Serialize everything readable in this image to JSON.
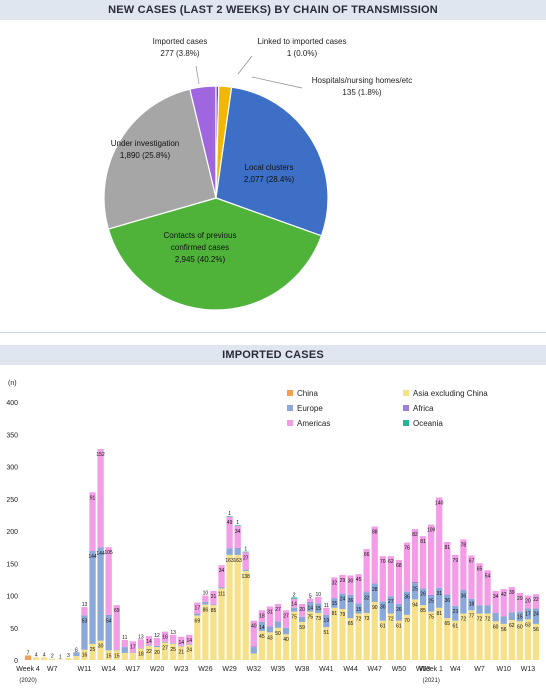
{
  "panel1": {
    "title": "NEW CASES (LAST 2 WEEKS) BY CHAIN OF TRANSMISSION"
  },
  "panel2": {
    "title": "IMPORTED CASES"
  },
  "chart_data": [
    {
      "type": "pie",
      "title": "NEW CASES (LAST 2 WEEKS) BY CHAIN OF TRANSMISSION",
      "slices": [
        {
          "name": "Imported cases",
          "value": 277,
          "pct": "3.8%",
          "color": "#a066e0"
        },
        {
          "name": "Linked to imported cases",
          "value": 1,
          "pct": "0.0%",
          "color": "#7a3fb8"
        },
        {
          "name": "Hospitals/nursing homes/etc",
          "value": 135,
          "pct": "1.8%",
          "color": "#f2b705"
        },
        {
          "name": "Local clusters",
          "value": 2077,
          "pct": "28.4%",
          "color": "#3d6fc6"
        },
        {
          "name": "Contacts of previous confirmed cases",
          "value": 2945,
          "pct": "40.2%",
          "color": "#4fb33a"
        },
        {
          "name": "Under investigation",
          "value": 1890,
          "pct": "25.8%",
          "color": "#a6a6a6"
        }
      ],
      "labels": {
        "imported": {
          "name": "Imported cases",
          "value": "277 (3.8%)"
        },
        "linked": {
          "name": "Linked to imported cases",
          "value": "1 (0.0%)"
        },
        "hospitals": {
          "name": "Hospitals/nursing homes/etc",
          "value": "135 (1.8%)"
        },
        "local": {
          "name": "Local clusters",
          "value": "2,077 (28.4%)"
        },
        "contacts": {
          "name1": "Contacts of previous",
          "name2": "confirmed cases",
          "value": "2,945 (40.2%)"
        },
        "under": {
          "name": "Under investigation",
          "value": "1,890 (25.8%)"
        }
      }
    },
    {
      "type": "bar",
      "stacked": true,
      "title": "IMPORTED CASES",
      "ylabel": "(n)",
      "ylim": [
        0,
        400
      ],
      "yticks": [
        0,
        50,
        100,
        150,
        200,
        250,
        300,
        350,
        400
      ],
      "xtick_labels": [
        {
          "i": 0,
          "label": "Week 4",
          "sub": "(2020)"
        },
        {
          "i": 3,
          "label": "W7"
        },
        {
          "i": 7,
          "label": "W11"
        },
        {
          "i": 10,
          "label": "W14"
        },
        {
          "i": 13,
          "label": "W17"
        },
        {
          "i": 16,
          "label": "W20"
        },
        {
          "i": 19,
          "label": "W23"
        },
        {
          "i": 22,
          "label": "W26"
        },
        {
          "i": 25,
          "label": "W29"
        },
        {
          "i": 28,
          "label": "W32"
        },
        {
          "i": 31,
          "label": "W35"
        },
        {
          "i": 34,
          "label": "W38"
        },
        {
          "i": 37,
          "label": "W41"
        },
        {
          "i": 40,
          "label": "W44"
        },
        {
          "i": 43,
          "label": "W47"
        },
        {
          "i": 46,
          "label": "W50"
        },
        {
          "i": 49,
          "label": "W53"
        },
        {
          "i": 50,
          "label": "Week 1",
          "sub": "(2021)"
        },
        {
          "i": 53,
          "label": "W4"
        },
        {
          "i": 56,
          "label": "W7"
        },
        {
          "i": 59,
          "label": "W10"
        },
        {
          "i": 62,
          "label": "W13"
        }
      ],
      "legend": [
        {
          "name": "China",
          "color": "#f0a050"
        },
        {
          "name": "Asia excluding China",
          "color": "#f7e08a"
        },
        {
          "name": "Europe",
          "color": "#8aa8d8"
        },
        {
          "name": "Africa",
          "color": "#9a7fd8"
        },
        {
          "name": "Americas",
          "color": "#f29de6"
        },
        {
          "name": "Oceania",
          "color": "#26b59a"
        }
      ],
      "series_order": [
        "China",
        "Asia excluding China",
        "Europe",
        "Africa",
        "Americas",
        "Oceania"
      ],
      "bars": [
        {
          "s": [
            7,
            0,
            0,
            0,
            0,
            0
          ]
        },
        {
          "s": [
            0,
            4,
            0,
            0,
            0,
            0
          ]
        },
        {
          "s": [
            0,
            4,
            0,
            0,
            0,
            0
          ]
        },
        {
          "s": [
            0,
            2,
            0,
            0,
            0,
            0
          ]
        },
        {
          "s": [
            0,
            1,
            0,
            0,
            0,
            0
          ]
        },
        {
          "s": [
            0,
            3,
            0,
            0,
            0,
            0
          ]
        },
        {
          "s": [
            0,
            6,
            6,
            0,
            0,
            0
          ]
        },
        {
          "s": [
            0,
            16,
            53,
            0,
            13,
            0
          ]
        },
        {
          "s": [
            0,
            25,
            144,
            0,
            91,
            0
          ]
        },
        {
          "s": [
            0,
            30,
            144,
            1,
            152,
            0
          ]
        },
        {
          "s": [
            0,
            15,
            54,
            1,
            105,
            0
          ]
        },
        {
          "s": [
            0,
            15,
            1,
            0,
            69,
            0
          ]
        },
        {
          "s": [
            0,
            11,
            9,
            0,
            11,
            0
          ]
        },
        {
          "s": [
            0,
            11,
            1,
            0,
            17,
            0
          ]
        },
        {
          "s": [
            0,
            18,
            1,
            0,
            13,
            0
          ]
        },
        {
          "s": [
            0,
            22,
            1,
            0,
            14,
            0
          ]
        },
        {
          "s": [
            0,
            20,
            2,
            0,
            12,
            0
          ]
        },
        {
          "s": [
            0,
            27,
            1,
            0,
            16,
            0
          ]
        },
        {
          "s": [
            0,
            25,
            1,
            0,
            13,
            0
          ]
        },
        {
          "s": [
            0,
            21,
            1,
            0,
            14,
            0
          ]
        },
        {
          "s": [
            0,
            24,
            1,
            0,
            14,
            0
          ]
        },
        {
          "s": [
            0,
            69,
            3,
            0,
            17,
            0
          ]
        },
        {
          "s": [
            0,
            86,
            4,
            0,
            10,
            0
          ]
        },
        {
          "s": [
            0,
            85,
            1,
            0,
            21,
            0
          ]
        },
        {
          "s": [
            0,
            111,
            2,
            0,
            34,
            0
          ]
        },
        {
          "s": [
            0,
            163,
            10,
            0,
            49,
            1
          ]
        },
        {
          "s": [
            0,
            163,
            10,
            1,
            34,
            1
          ]
        },
        {
          "s": [
            0,
            138,
            2,
            0,
            27,
            1
          ]
        },
        {
          "s": [
            0,
            10,
            10,
            1,
            40,
            0
          ]
        },
        {
          "s": [
            0,
            45,
            14,
            0,
            18,
            0
          ]
        },
        {
          "s": [
            0,
            43,
            9,
            0,
            31,
            0
          ]
        },
        {
          "s": [
            0,
            50,
            10,
            0,
            27,
            0
          ]
        },
        {
          "s": [
            0,
            40,
            10,
            0,
            27,
            0
          ]
        },
        {
          "s": [
            0,
            75,
            6,
            0,
            14,
            2
          ]
        },
        {
          "s": [
            0,
            59,
            8,
            0,
            20,
            0
          ]
        },
        {
          "s": [
            0,
            75,
            14,
            1,
            5,
            0
          ]
        },
        {
          "s": [
            0,
            73,
            15,
            0,
            10,
            0
          ]
        },
        {
          "s": [
            0,
            51,
            19,
            0,
            11,
            0
          ]
        },
        {
          "s": [
            0,
            81,
            15,
            0,
            32,
            0
          ]
        },
        {
          "s": [
            0,
            79,
            24,
            0,
            29,
            0
          ]
        },
        {
          "s": [
            0,
            65,
            36,
            0,
            30,
            0
          ]
        },
        {
          "s": [
            0,
            72,
            15,
            1,
            45,
            0
          ]
        },
        {
          "s": [
            0,
            73,
            32,
            1,
            66,
            0
          ]
        },
        {
          "s": [
            0,
            90,
            28,
            1,
            88,
            0
          ]
        },
        {
          "s": [
            0,
            61,
            30,
            0,
            70,
            0
          ]
        },
        {
          "s": [
            0,
            72,
            27,
            0,
            62,
            0
          ]
        },
        {
          "s": [
            0,
            61,
            26,
            0,
            68,
            0
          ]
        },
        {
          "s": [
            0,
            70,
            36,
            0,
            76,
            0
          ]
        },
        {
          "s": [
            0,
            94,
            25,
            2,
            82,
            0
          ]
        },
        {
          "s": [
            0,
            85,
            26,
            0,
            81,
            0
          ]
        },
        {
          "s": [
            0,
            75,
            25,
            1,
            109,
            0
          ]
        },
        {
          "s": [
            0,
            81,
            31,
            0,
            140,
            0
          ]
        },
        {
          "s": [
            0,
            65,
            36,
            1,
            81,
            0
          ]
        },
        {
          "s": [
            0,
            61,
            23,
            0,
            79,
            0
          ]
        },
        {
          "s": [
            0,
            72,
            36,
            1,
            78,
            0
          ]
        },
        {
          "s": [
            0,
            77,
            18,
            0,
            67,
            0
          ]
        },
        {
          "s": [
            0,
            72,
            13,
            0,
            65,
            0
          ]
        },
        {
          "s": [
            0,
            72,
            13,
            0,
            54,
            0
          ]
        },
        {
          "s": [
            0,
            60,
            13,
            0,
            34,
            0
          ]
        },
        {
          "s": [
            0,
            56,
            12,
            0,
            42,
            0
          ]
        },
        {
          "s": [
            0,
            62,
            12,
            0,
            39,
            0
          ]
        },
        {
          "s": [
            0,
            60,
            15,
            0,
            29,
            0
          ]
        },
        {
          "s": [
            0,
            63,
            17,
            0,
            20,
            0
          ]
        },
        {
          "s": [
            0,
            56,
            24,
            0,
            22,
            0
          ]
        }
      ]
    }
  ]
}
